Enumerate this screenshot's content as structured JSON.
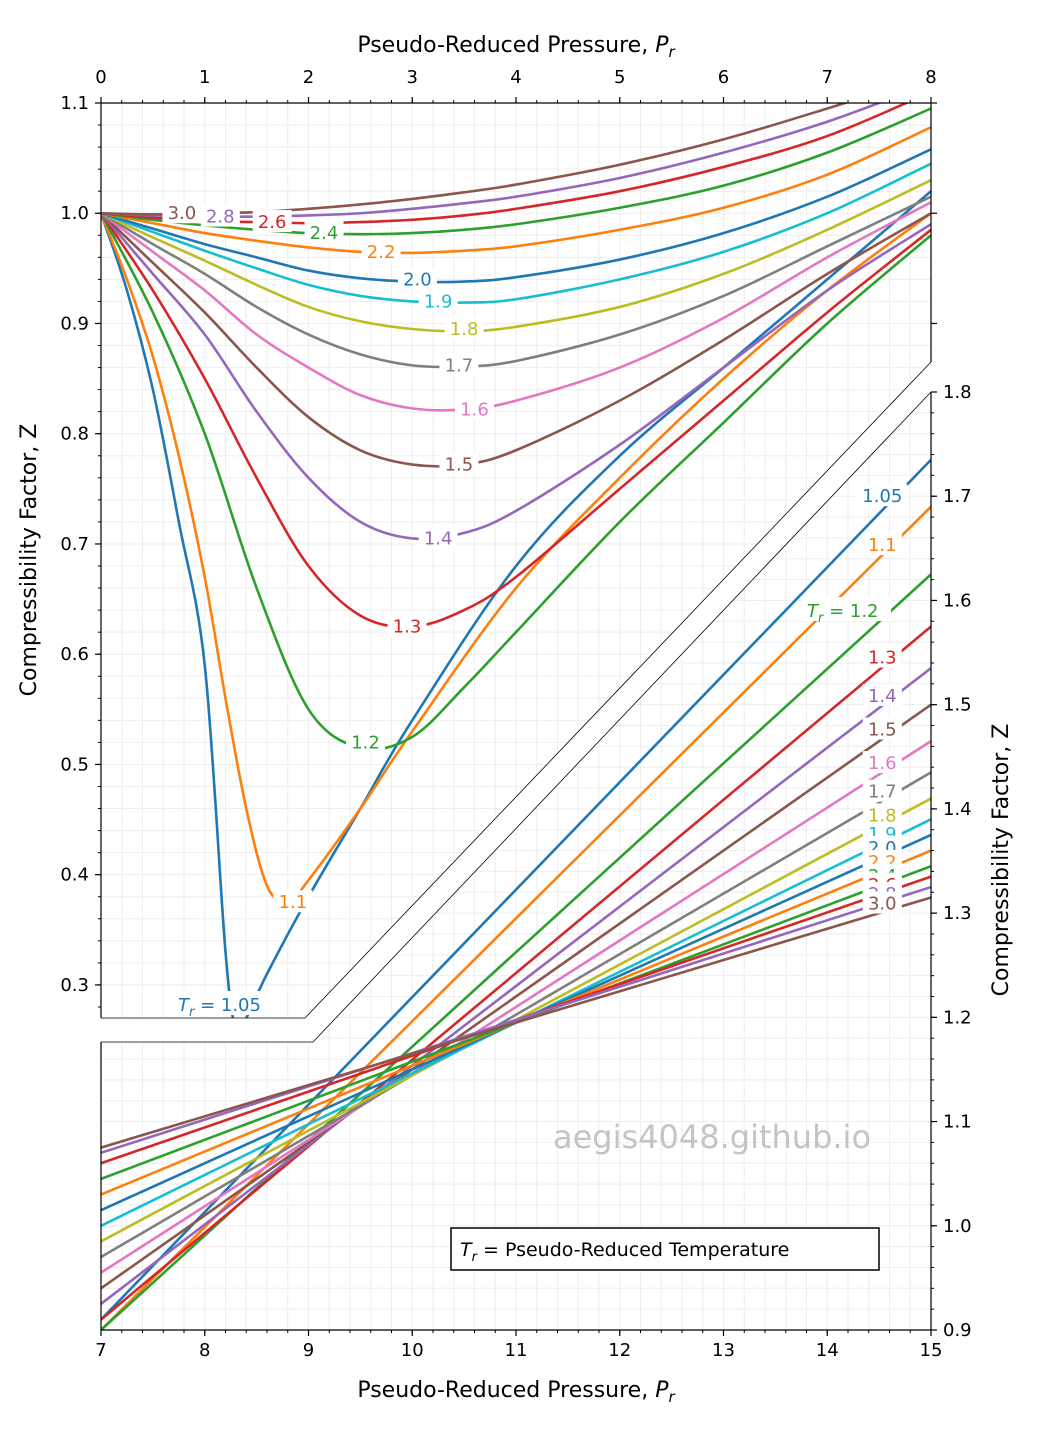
{
  "chart_data": {
    "type": "line",
    "title": "",
    "colors": {
      "1.05": "#1f77b4",
      "1.1": "#ff7f0e",
      "1.2": "#2ca02c",
      "1.3": "#d62728",
      "1.4": "#9467bd",
      "1.5": "#8c564b",
      "1.6": "#e377c2",
      "1.7": "#7f7f7f",
      "1.8": "#bcbd22",
      "1.9": "#17becf",
      "2.0": "#1f77b4",
      "2.2": "#ff7f0e",
      "2.4": "#2ca02c",
      "2.6": "#d62728",
      "2.8": "#9467bd",
      "3.0": "#8c564b"
    },
    "upper_panel": {
      "xlabel_prefix": "Pseudo-Reduced Pressure, ",
      "xlabel_symbol": "P",
      "xlabel_sub": "r",
      "ylabel": "Compressibility Factor, Z",
      "xlim": [
        0,
        8
      ],
      "ylim": [
        0.27,
        1.1
      ],
      "xticks": [
        "0",
        "1",
        "2",
        "3",
        "4",
        "5",
        "6",
        "7",
        "8"
      ],
      "yticks": [
        "0.3",
        "0.4",
        "0.5",
        "0.6",
        "0.7",
        "0.8",
        "0.9",
        "1.0",
        "1.1"
      ],
      "series": [
        {
          "name": "1.05",
          "label": "1.05",
          "x": [
            0,
            0.25,
            0.5,
            0.75,
            1.0,
            1.2,
            1.3,
            1.4,
            1.6,
            2.0,
            2.5,
            3.0,
            4.0,
            5.0,
            6.0,
            7.0,
            8.0
          ],
          "y": [
            1.0,
            0.93,
            0.84,
            0.72,
            0.59,
            0.33,
            0.26,
            0.27,
            0.31,
            0.38,
            0.46,
            0.54,
            0.68,
            0.78,
            0.86,
            0.94,
            1.02
          ]
        },
        {
          "name": "1.1",
          "label": "1.1",
          "x": [
            0,
            0.25,
            0.5,
            0.75,
            1.0,
            1.2,
            1.4,
            1.6,
            1.8,
            2.0,
            2.5,
            3.0,
            4.0,
            5.0,
            6.0,
            7.0,
            8.0
          ],
          "y": [
            1.0,
            0.94,
            0.87,
            0.78,
            0.67,
            0.56,
            0.46,
            0.39,
            0.375,
            0.395,
            0.46,
            0.53,
            0.66,
            0.76,
            0.85,
            0.93,
            1.0
          ]
        },
        {
          "name": "1.2",
          "label": "1.2",
          "x": [
            0,
            0.5,
            1.0,
            1.5,
            2.0,
            2.5,
            3.0,
            3.5,
            4.0,
            5.0,
            6.0,
            7.0,
            8.0
          ],
          "y": [
            1.0,
            0.91,
            0.8,
            0.66,
            0.55,
            0.515,
            0.525,
            0.57,
            0.62,
            0.72,
            0.81,
            0.9,
            0.98
          ]
        },
        {
          "name": "1.3",
          "label": "1.3",
          "x": [
            0,
            0.5,
            1.0,
            1.5,
            2.0,
            2.5,
            3.0,
            3.5,
            4.0,
            5.0,
            6.0,
            7.0,
            8.0
          ],
          "y": [
            1.0,
            0.93,
            0.85,
            0.76,
            0.68,
            0.635,
            0.625,
            0.64,
            0.67,
            0.75,
            0.83,
            0.91,
            0.985
          ]
        },
        {
          "name": "1.4",
          "label": "1.4",
          "x": [
            0,
            0.5,
            1.0,
            1.5,
            2.0,
            2.5,
            3.0,
            3.5,
            4.0,
            5.0,
            6.0,
            7.0,
            8.0
          ],
          "y": [
            1.0,
            0.945,
            0.89,
            0.82,
            0.76,
            0.72,
            0.705,
            0.71,
            0.73,
            0.79,
            0.86,
            0.93,
            0.99
          ]
        },
        {
          "name": "1.5",
          "label": "1.5",
          "x": [
            0,
            0.5,
            1.0,
            1.5,
            2.0,
            2.5,
            3.0,
            3.5,
            4.0,
            5.0,
            6.0,
            7.0,
            8.0
          ],
          "y": [
            1.0,
            0.955,
            0.91,
            0.86,
            0.815,
            0.785,
            0.772,
            0.772,
            0.785,
            0.83,
            0.885,
            0.945,
            1.0
          ]
        },
        {
          "name": "1.6",
          "label": "1.6",
          "x": [
            0,
            0.5,
            1.0,
            1.5,
            2.0,
            2.5,
            3.0,
            3.5,
            4.0,
            5.0,
            6.0,
            7.0,
            8.0
          ],
          "y": [
            1.0,
            0.965,
            0.93,
            0.89,
            0.86,
            0.835,
            0.823,
            0.822,
            0.83,
            0.86,
            0.905,
            0.96,
            1.01
          ]
        },
        {
          "name": "1.7",
          "label": "1.7",
          "x": [
            0,
            0.5,
            1.0,
            1.5,
            2.0,
            2.5,
            3.0,
            3.5,
            4.0,
            5.0,
            6.0,
            7.0,
            8.0
          ],
          "y": [
            1.0,
            0.972,
            0.945,
            0.915,
            0.89,
            0.872,
            0.862,
            0.861,
            0.866,
            0.89,
            0.925,
            0.97,
            1.015
          ]
        },
        {
          "name": "1.8",
          "label": "1.8",
          "x": [
            0,
            0.5,
            1.0,
            1.5,
            2.0,
            2.5,
            3.0,
            3.5,
            4.0,
            5.0,
            6.0,
            7.0,
            8.0
          ],
          "y": [
            1.0,
            0.978,
            0.957,
            0.935,
            0.915,
            0.902,
            0.895,
            0.893,
            0.897,
            0.915,
            0.945,
            0.985,
            1.03
          ]
        },
        {
          "name": "1.9",
          "label": "1.9",
          "x": [
            0,
            0.5,
            1.0,
            1.5,
            2.0,
            2.5,
            3.0,
            3.5,
            4.0,
            5.0,
            6.0,
            7.0,
            8.0
          ],
          "y": [
            1.0,
            0.983,
            0.966,
            0.95,
            0.935,
            0.925,
            0.92,
            0.919,
            0.922,
            0.94,
            0.965,
            1.0,
            1.045
          ]
        },
        {
          "name": "2.0",
          "label": "2.0",
          "x": [
            0,
            0.5,
            1.0,
            1.5,
            2.0,
            2.5,
            3.0,
            3.5,
            4.0,
            5.0,
            6.0,
            7.0,
            8.0
          ],
          "y": [
            1.0,
            0.986,
            0.972,
            0.96,
            0.948,
            0.941,
            0.938,
            0.938,
            0.942,
            0.958,
            0.982,
            1.015,
            1.058
          ]
        },
        {
          "name": "2.2",
          "label": "2.2",
          "x": [
            0,
            0.5,
            1.0,
            1.5,
            2.0,
            2.5,
            3.0,
            3.5,
            4.0,
            5.0,
            6.0,
            7.0,
            8.0
          ],
          "y": [
            1.0,
            0.991,
            0.982,
            0.975,
            0.969,
            0.965,
            0.964,
            0.966,
            0.97,
            0.985,
            1.005,
            1.035,
            1.078
          ]
        },
        {
          "name": "2.4",
          "label": "2.4",
          "x": [
            0,
            0.5,
            1.0,
            1.5,
            2.0,
            2.5,
            3.0,
            3.5,
            4.0,
            5.0,
            6.0,
            7.0,
            8.0
          ],
          "y": [
            1.0,
            0.994,
            0.989,
            0.985,
            0.982,
            0.981,
            0.982,
            0.985,
            0.99,
            1.005,
            1.025,
            1.055,
            1.095
          ]
        },
        {
          "name": "2.6",
          "label": "2.6",
          "x": [
            0,
            0.5,
            1.0,
            1.5,
            2.0,
            2.5,
            3.0,
            3.5,
            4.0,
            5.0,
            6.0,
            7.0,
            8.0
          ],
          "y": [
            1.0,
            0.996,
            0.993,
            0.992,
            0.991,
            0.992,
            0.994,
            0.998,
            1.004,
            1.02,
            1.042,
            1.07,
            1.11
          ]
        },
        {
          "name": "2.8",
          "label": "2.8",
          "x": [
            0,
            0.5,
            1.0,
            1.5,
            2.0,
            2.5,
            3.0,
            3.5,
            4.0,
            5.0,
            6.0,
            7.0,
            8.0
          ],
          "y": [
            1.0,
            0.998,
            0.997,
            0.997,
            0.998,
            1.0,
            1.004,
            1.009,
            1.015,
            1.032,
            1.055,
            1.083,
            1.118
          ]
        },
        {
          "name": "3.0",
          "label": "3.0",
          "x": [
            0,
            0.5,
            1.0,
            1.5,
            2.0,
            2.5,
            3.0,
            3.5,
            4.0,
            5.0,
            6.0,
            7.0,
            8.0
          ],
          "y": [
            1.0,
            0.999,
            1.0,
            1.001,
            1.004,
            1.008,
            1.013,
            1.019,
            1.026,
            1.044,
            1.067,
            1.095,
            1.125
          ]
        }
      ]
    },
    "lower_panel": {
      "xlabel_prefix": "Pseudo-Reduced Pressure, ",
      "xlabel_symbol": "P",
      "xlabel_sub": "r",
      "ylabel": "Compressibility Factor, Z",
      "xlim": [
        7,
        15
      ],
      "ylim": [
        0.9,
        1.8
      ],
      "xticks": [
        "7",
        "8",
        "9",
        "10",
        "11",
        "12",
        "13",
        "14",
        "15"
      ],
      "yticks": [
        "0.9",
        "1.0",
        "1.1",
        "1.2",
        "1.3",
        "1.4",
        "1.5",
        "1.6",
        "1.7",
        "1.8"
      ],
      "series": [
        {
          "name": "1.05",
          "x": [
            7,
            15
          ],
          "y": [
            0.91,
            1.735
          ]
        },
        {
          "name": "1.1",
          "x": [
            7,
            15
          ],
          "y": [
            0.9,
            1.69
          ]
        },
        {
          "name": "1.2",
          "x": [
            7,
            15
          ],
          "y": [
            0.9,
            1.625
          ]
        },
        {
          "name": "1.3",
          "x": [
            7,
            15
          ],
          "y": [
            0.91,
            1.575
          ]
        },
        {
          "name": "1.4",
          "x": [
            7,
            15
          ],
          "y": [
            0.925,
            1.535
          ]
        },
        {
          "name": "1.5",
          "x": [
            7,
            15
          ],
          "y": [
            0.94,
            1.5
          ]
        },
        {
          "name": "1.6",
          "x": [
            7,
            15
          ],
          "y": [
            0.955,
            1.465
          ]
        },
        {
          "name": "1.7",
          "x": [
            7,
            15
          ],
          "y": [
            0.97,
            1.435
          ]
        },
        {
          "name": "1.8",
          "x": [
            7,
            15
          ],
          "y": [
            0.985,
            1.41
          ]
        },
        {
          "name": "1.9",
          "x": [
            7,
            15
          ],
          "y": [
            1.0,
            1.39
          ]
        },
        {
          "name": "2.0",
          "x": [
            7,
            15
          ],
          "y": [
            1.015,
            1.375
          ]
        },
        {
          "name": "2.2",
          "x": [
            7,
            15
          ],
          "y": [
            1.03,
            1.36
          ]
        },
        {
          "name": "2.4",
          "x": [
            7,
            15
          ],
          "y": [
            1.045,
            1.345
          ]
        },
        {
          "name": "2.6",
          "x": [
            7,
            15
          ],
          "y": [
            1.06,
            1.335
          ]
        },
        {
          "name": "2.8",
          "x": [
            7,
            15
          ],
          "y": [
            1.07,
            1.325
          ]
        },
        {
          "name": "3.0",
          "x": [
            7,
            15
          ],
          "y": [
            1.075,
            1.315
          ]
        }
      ]
    },
    "annotations": {
      "upper_low_label_symbol": "T",
      "upper_low_label_sub": "r",
      "upper_low_label_value": " = 1.05",
      "lower_mid_label_symbol": "T",
      "lower_mid_label_sub": "r",
      "lower_mid_label_value": " = 1.2",
      "legend_box_symbol": "T",
      "legend_box_sub": "r",
      "legend_box_text": " = Pseudo-Reduced Temperature",
      "watermark": "aegis4048.github.io"
    }
  }
}
